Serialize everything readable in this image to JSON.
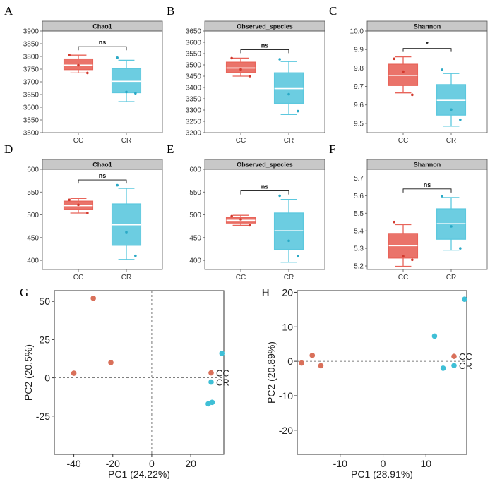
{
  "colors": {
    "CC": "#e8645a",
    "CR": "#5cc8de",
    "CC_pca": "#d9705a",
    "CR_pca": "#3fbfd6"
  },
  "chart_data": [
    {
      "type": "box",
      "panel": "A",
      "title": "Chao1",
      "categories": [
        "CC",
        "CR"
      ],
      "ylim": [
        3500,
        3900
      ],
      "yticks": [
        3500,
        3550,
        3600,
        3650,
        3700,
        3750,
        3800,
        3850,
        3900
      ],
      "groups": [
        {
          "name": "CC",
          "min": 3735,
          "q1": 3748,
          "median": 3766,
          "q3": 3790,
          "max": 3805,
          "points": [
            3805,
            3765,
            3735
          ]
        },
        {
          "name": "CR",
          "min": 3622,
          "q1": 3657,
          "median": 3702,
          "q3": 3752,
          "max": 3785,
          "points": [
            3795,
            3660,
            3655
          ]
        }
      ],
      "significance": "ns"
    },
    {
      "type": "box",
      "panel": "B",
      "title": "Observed_species",
      "categories": [
        "CC",
        "CR"
      ],
      "ylim": [
        3200,
        3650
      ],
      "yticks": [
        3200,
        3250,
        3300,
        3350,
        3400,
        3450,
        3500,
        3550,
        3600,
        3650
      ],
      "groups": [
        {
          "name": "CC",
          "min": 3450,
          "q1": 3466,
          "median": 3486,
          "q3": 3512,
          "max": 3530,
          "points": [
            3530,
            3480,
            3450
          ]
        },
        {
          "name": "CR",
          "min": 3280,
          "q1": 3330,
          "median": 3395,
          "q3": 3465,
          "max": 3515,
          "points": [
            3525,
            3370,
            3295
          ]
        }
      ],
      "significance": "ns"
    },
    {
      "type": "box",
      "panel": "C",
      "title": "Shannon",
      "categories": [
        "CC",
        "CR"
      ],
      "ylim": [
        9.45,
        10.0
      ],
      "yticks": [
        9.5,
        9.6,
        9.7,
        9.8,
        9.9,
        10.0
      ],
      "groups": [
        {
          "name": "CC",
          "min": 9.665,
          "q1": 9.705,
          "median": 9.76,
          "q3": 9.82,
          "max": 9.86,
          "points": [
            9.85,
            9.78,
            9.655
          ]
        },
        {
          "name": "CR",
          "min": 9.485,
          "q1": 9.545,
          "median": 9.625,
          "q3": 9.71,
          "max": 9.77,
          "points": [
            9.79,
            9.575,
            9.52
          ]
        }
      ],
      "significance": "*"
    },
    {
      "type": "box",
      "panel": "D",
      "title": "Chao1",
      "categories": [
        "CC",
        "CR"
      ],
      "ylim": [
        380,
        600
      ],
      "yticks": [
        400,
        450,
        500,
        550,
        600
      ],
      "groups": [
        {
          "name": "CC",
          "min": 504,
          "q1": 512,
          "median": 520,
          "q3": 530,
          "max": 536,
          "points": [
            533,
            522,
            504
          ]
        },
        {
          "name": "CR",
          "min": 402,
          "q1": 433,
          "median": 478,
          "q3": 524,
          "max": 558,
          "points": [
            565,
            462,
            410
          ]
        }
      ],
      "significance": "ns"
    },
    {
      "type": "box",
      "panel": "E",
      "title": "Observed_species",
      "categories": [
        "CC",
        "CR"
      ],
      "ylim": [
        380,
        600
      ],
      "yticks": [
        400,
        450,
        500,
        550,
        600
      ],
      "groups": [
        {
          "name": "CC",
          "min": 477,
          "q1": 482,
          "median": 488,
          "q3": 494,
          "max": 499,
          "points": [
            497,
            490,
            477
          ]
        },
        {
          "name": "CR",
          "min": 396,
          "q1": 424,
          "median": 465,
          "q3": 504,
          "max": 534,
          "points": [
            542,
            443,
            409
          ]
        }
      ],
      "significance": "ns"
    },
    {
      "type": "box",
      "panel": "F",
      "title": "Shannon",
      "categories": [
        "CC",
        "CR"
      ],
      "ylim": [
        5.18,
        5.75
      ],
      "yticks": [
        5.2,
        5.3,
        5.4,
        5.5,
        5.6,
        5.7
      ],
      "groups": [
        {
          "name": "CC",
          "min": 5.198,
          "q1": 5.245,
          "median": 5.315,
          "q3": 5.385,
          "max": 5.435,
          "points": [
            5.45,
            5.255,
            5.235
          ]
        },
        {
          "name": "CR",
          "min": 5.29,
          "q1": 5.352,
          "median": 5.44,
          "q3": 5.525,
          "max": 5.59,
          "points": [
            5.597,
            5.425,
            5.3
          ]
        }
      ],
      "significance": "ns"
    },
    {
      "type": "scatter",
      "panel": "G",
      "xlabel": "PC1 (24.22%)",
      "ylabel": "PC2 (20.5%)",
      "xlim": [
        -50,
        37
      ],
      "ylim": [
        -50,
        57
      ],
      "xticks": [
        -40,
        -20,
        0,
        20
      ],
      "yticks": [
        50,
        25,
        0,
        -25
      ],
      "legend": [
        "CC",
        "CR"
      ],
      "legend_position": "right",
      "series": [
        {
          "name": "CC",
          "points": [
            [
              -30,
              52
            ],
            [
              -40,
              3
            ],
            [
              -21,
              10
            ]
          ]
        },
        {
          "name": "CR",
          "points": [
            [
              36,
              16
            ],
            [
              31,
              -16
            ],
            [
              29,
              -17
            ]
          ]
        }
      ]
    },
    {
      "type": "scatter",
      "panel": "H",
      "xlabel": "PC1 (28.91%)",
      "ylabel": "PC2 (20.89%)",
      "xlim": [
        -20,
        19.5
      ],
      "ylim": [
        -27,
        20.5
      ],
      "xticks": [
        -10,
        0,
        10
      ],
      "yticks": [
        20,
        10,
        0,
        -10,
        -20
      ],
      "legend": [
        "CC",
        "CR"
      ],
      "legend_position": "right",
      "series": [
        {
          "name": "CC",
          "points": [
            [
              -19,
              -0.5
            ],
            [
              -16.5,
              1.7
            ],
            [
              -14.5,
              -1.3
            ]
          ]
        },
        {
          "name": "CR",
          "points": [
            [
              19,
              18
            ],
            [
              12,
              7.3
            ],
            [
              14,
              -2
            ]
          ]
        }
      ]
    }
  ]
}
